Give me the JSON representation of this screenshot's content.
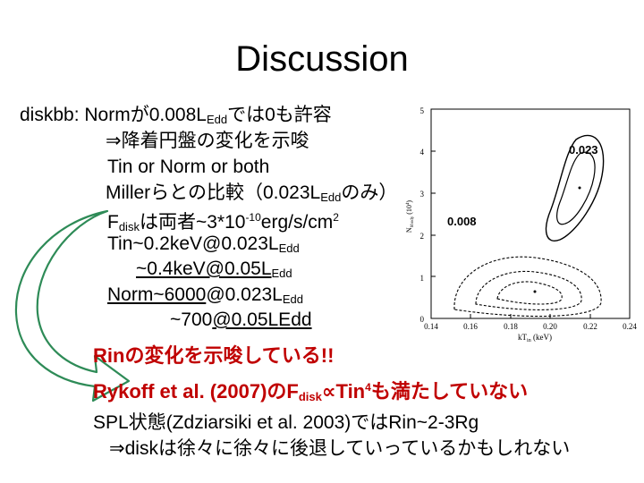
{
  "title": "Discussion",
  "lines": {
    "l1a": "diskbb: Normが0.008L",
    "l1sub": "Edd",
    "l1b": "では0も許容",
    "l2": "⇒降着円盤の変化を示唆",
    "l3": "Tin or Norm or both",
    "l4a": "Millerらとの比較（0.023L",
    "l4sub": "Edd",
    "l4b": "のみ）",
    "l5a": "F",
    "l5sub": "disk",
    "l5b": "は両者~3*10",
    "l5sup": "-10",
    "l5c": "erg/s/cm",
    "l5sup2": "2",
    "l6a": "Tin~0.2keV@0.023L",
    "l6sub": "Edd",
    "l7a": "~0.4keV@0.05L",
    "l7sub": "Edd",
    "l8a": "Norm~6000",
    "l8b": "@0.023L",
    "l8sub": "Edd",
    "l9a": "~700",
    "l9b": "@0.05LEdd"
  },
  "highlight": {
    "r1": "Rinの変化を示唆している!!",
    "r2a": "Rykoff et al. (2007)のF",
    "r2sub": "disk",
    "r2b": "∝Tin",
    "r2sup": "4",
    "r2c": "も満たしていない"
  },
  "footer": {
    "f1": "SPL状態(Zdziarsiki et al. 2003)ではRin~2-3Rg",
    "f2": "⇒diskは徐々に徐々に後退していっているかもしれない"
  },
  "plot": {
    "label_high": "0.023",
    "label_low": "0.008",
    "ylabel": "N",
    "ylabel_sub": "bbody",
    "ylabel_rest": " (10",
    "ylabel_sup": "4",
    "ylabel_end": ")",
    "xlabel": "kT",
    "xlabel_sub": "in",
    "xlabel_rest": " (keV)",
    "xticks": [
      "0.14",
      "0.16",
      "0.18",
      "0.20",
      "0.22",
      "0.24"
    ],
    "yticks": [
      "0",
      "1",
      "2",
      "3",
      "4",
      "5"
    ]
  }
}
